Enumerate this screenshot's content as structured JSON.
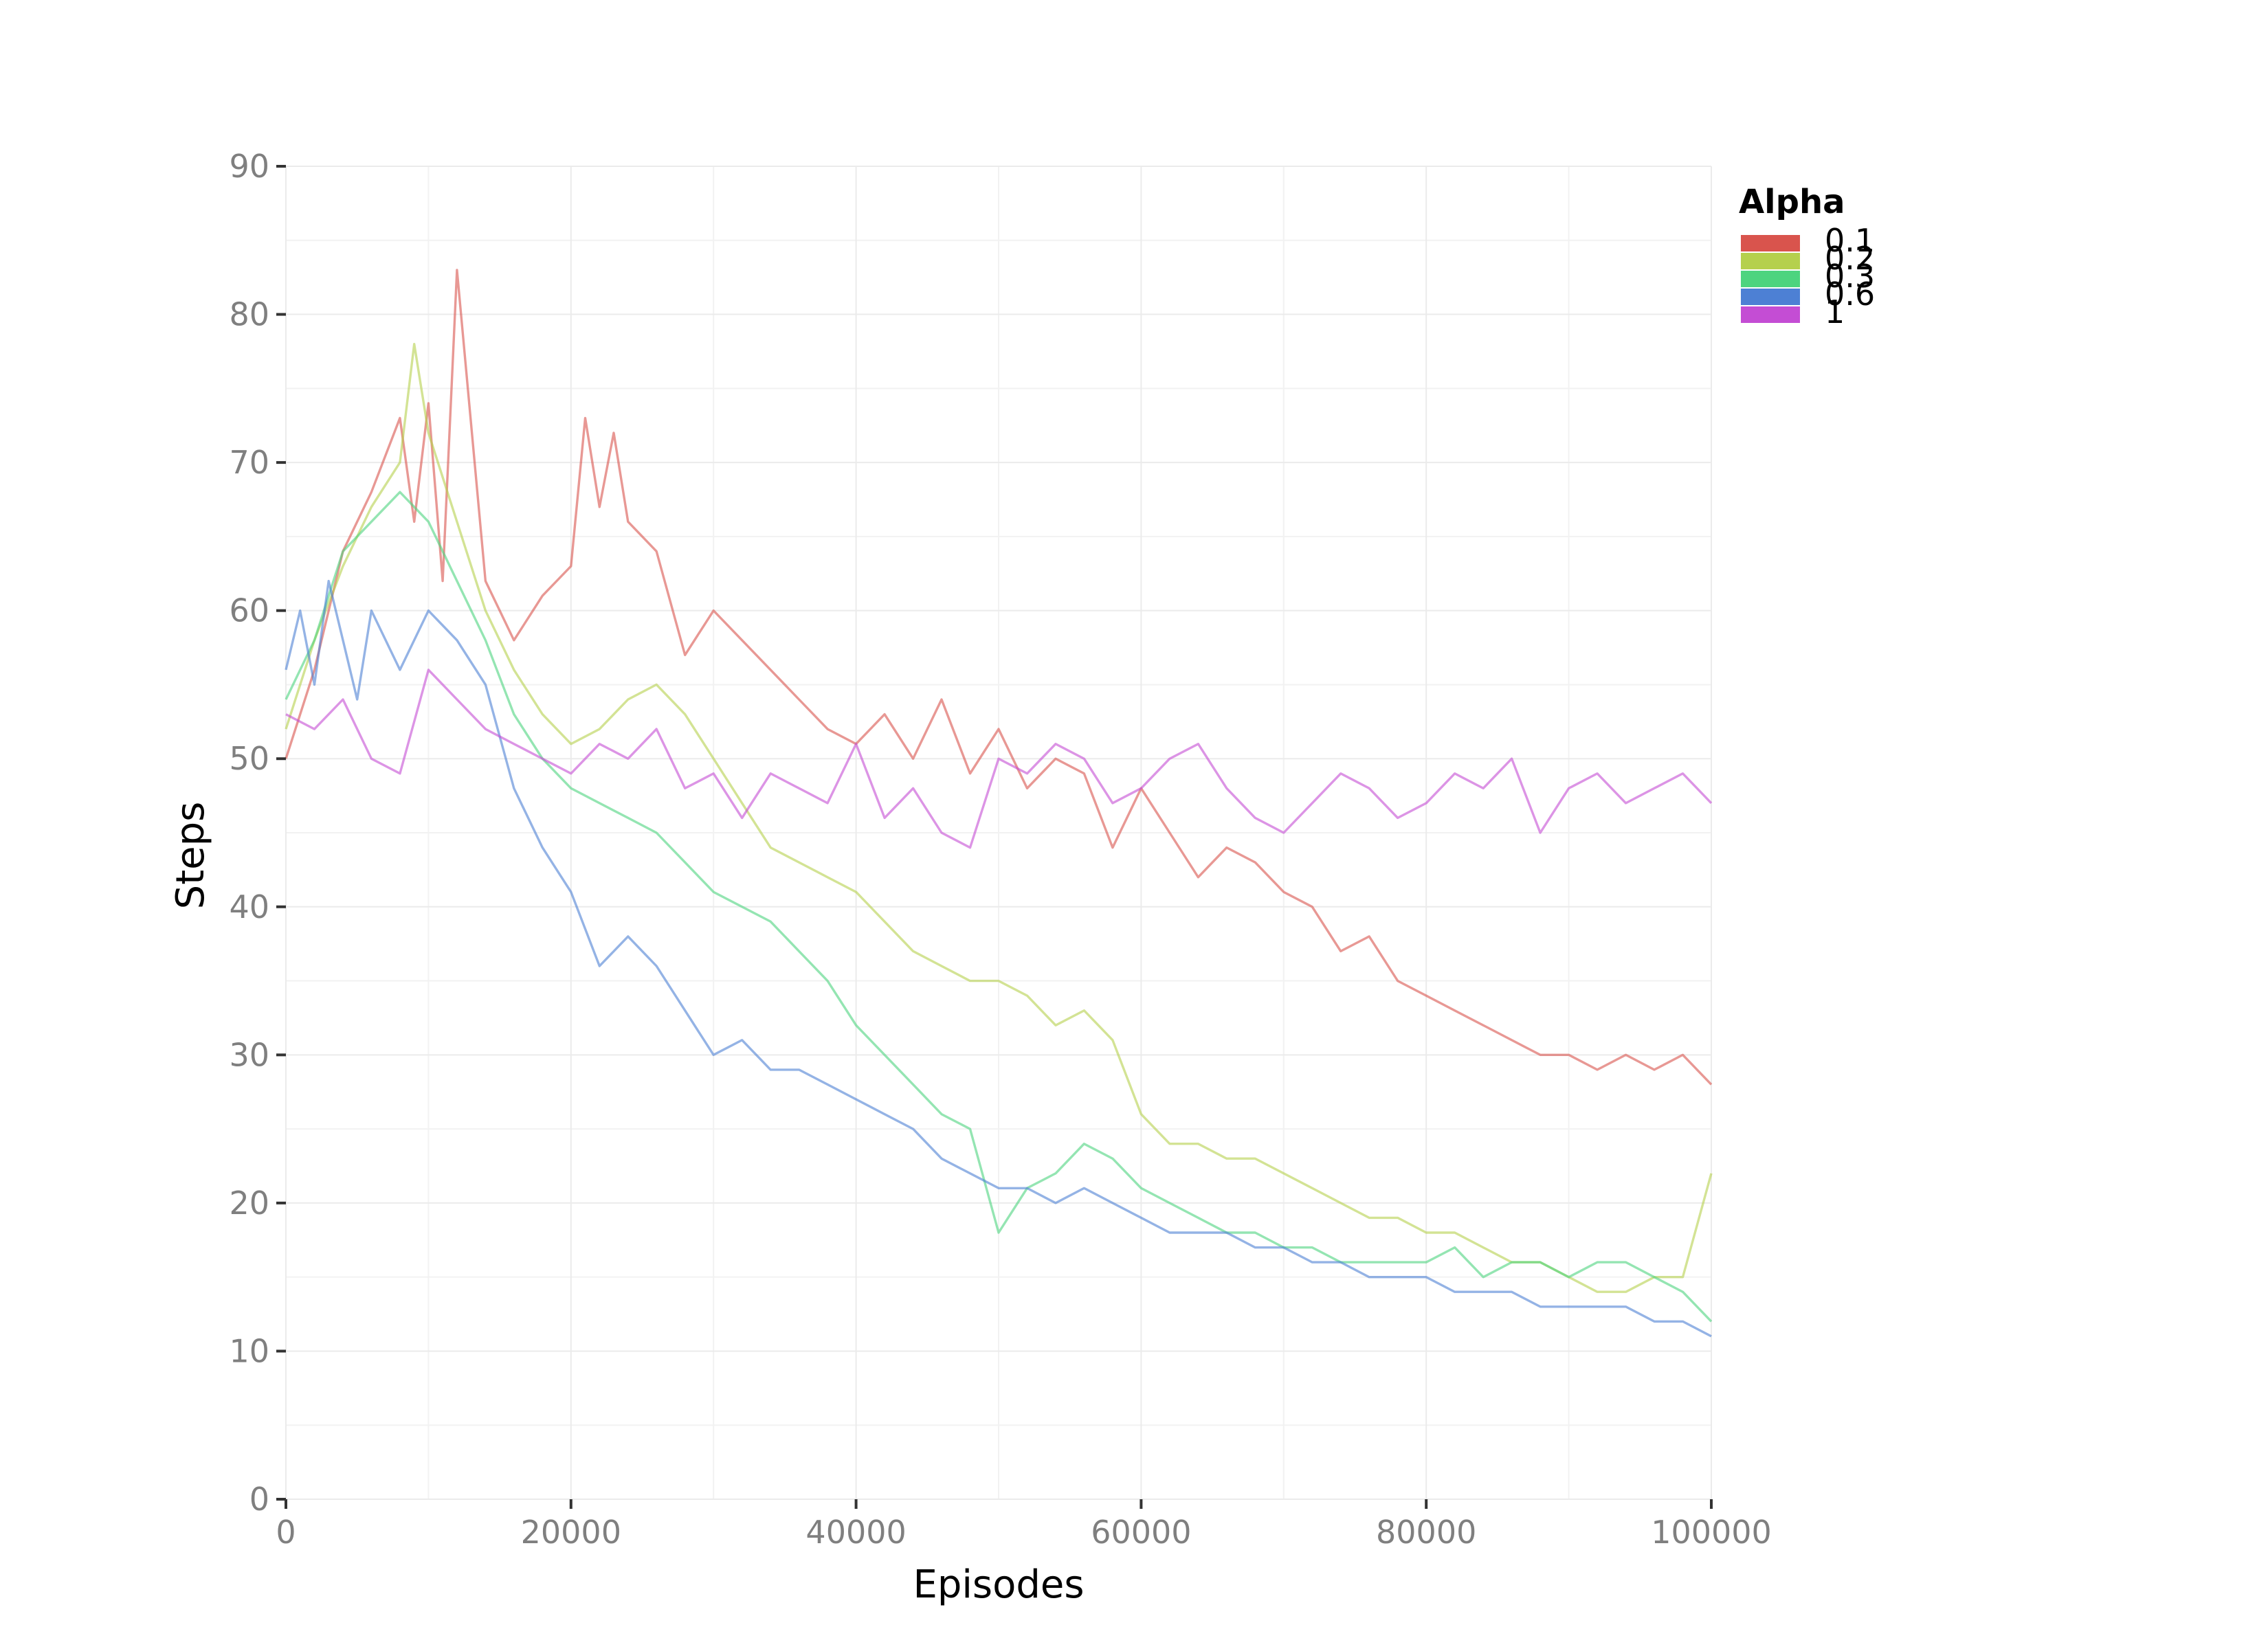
{
  "chart_data": {
    "type": "line",
    "title": "",
    "xlabel": "Episodes",
    "ylabel": "Steps",
    "xlim": [
      0,
      100000
    ],
    "ylim": [
      0,
      90
    ],
    "x_ticks": [
      0,
      20000,
      40000,
      60000,
      80000,
      100000
    ],
    "x_tick_labels": [
      "0",
      "20000",
      "40000",
      "60000",
      "80000",
      "100000"
    ],
    "y_ticks": [
      0,
      10,
      20,
      30,
      40,
      50,
      60,
      70,
      80,
      90
    ],
    "y_tick_labels": [
      "0",
      "10",
      "20",
      "30",
      "40",
      "50",
      "60",
      "70",
      "80",
      "90"
    ],
    "grid": true,
    "legend": {
      "title": "Alpha",
      "position": "top-right"
    },
    "series": [
      {
        "name": "0.1",
        "color": "#d9544d",
        "x": [
          0,
          2000,
          4000,
          6000,
          8000,
          9000,
          10000,
          11000,
          12000,
          14000,
          16000,
          18000,
          20000,
          21000,
          22000,
          23000,
          24000,
          26000,
          28000,
          30000,
          32000,
          34000,
          36000,
          38000,
          40000,
          42000,
          44000,
          46000,
          48000,
          50000,
          52000,
          54000,
          56000,
          58000,
          60000,
          62000,
          64000,
          66000,
          68000,
          70000,
          72000,
          74000,
          76000,
          78000,
          80000,
          82000,
          84000,
          86000,
          88000,
          90000,
          92000,
          94000,
          96000,
          98000,
          100000
        ],
        "y": [
          50,
          56,
          64,
          68,
          73,
          66,
          74,
          62,
          83,
          62,
          58,
          61,
          63,
          73,
          67,
          72,
          66,
          64,
          57,
          60,
          58,
          56,
          54,
          52,
          51,
          53,
          50,
          54,
          49,
          52,
          48,
          50,
          49,
          44,
          48,
          45,
          42,
          44,
          43,
          41,
          40,
          37,
          38,
          35,
          34,
          33,
          32,
          31,
          30,
          30,
          29,
          30,
          29,
          30,
          28
        ]
      },
      {
        "name": "0.2",
        "color": "#b5d04d",
        "x": [
          0,
          2000,
          4000,
          6000,
          8000,
          9000,
          10000,
          12000,
          14000,
          16000,
          18000,
          20000,
          22000,
          24000,
          26000,
          28000,
          30000,
          32000,
          34000,
          36000,
          38000,
          40000,
          42000,
          44000,
          46000,
          48000,
          50000,
          52000,
          54000,
          56000,
          58000,
          60000,
          62000,
          64000,
          66000,
          68000,
          70000,
          72000,
          74000,
          76000,
          78000,
          80000,
          82000,
          84000,
          86000,
          88000,
          90000,
          92000,
          94000,
          96000,
          98000,
          100000
        ],
        "y": [
          52,
          58,
          63,
          67,
          70,
          78,
          72,
          66,
          60,
          56,
          53,
          51,
          52,
          54,
          55,
          53,
          50,
          47,
          44,
          43,
          42,
          41,
          39,
          37,
          36,
          35,
          35,
          34,
          32,
          33,
          31,
          26,
          24,
          24,
          23,
          23,
          22,
          21,
          20,
          19,
          19,
          18,
          18,
          17,
          16,
          16,
          15,
          14,
          14,
          15,
          15,
          22
        ]
      },
      {
        "name": "0.3",
        "color": "#4dd47f",
        "x": [
          0,
          2000,
          4000,
          6000,
          8000,
          10000,
          12000,
          14000,
          16000,
          18000,
          20000,
          22000,
          24000,
          26000,
          28000,
          30000,
          32000,
          34000,
          36000,
          38000,
          40000,
          42000,
          44000,
          46000,
          48000,
          50000,
          52000,
          54000,
          56000,
          58000,
          60000,
          62000,
          64000,
          66000,
          68000,
          70000,
          72000,
          74000,
          76000,
          78000,
          80000,
          82000,
          84000,
          86000,
          88000,
          90000,
          92000,
          94000,
          96000,
          98000,
          100000
        ],
        "y": [
          54,
          58,
          64,
          66,
          68,
          66,
          62,
          58,
          53,
          50,
          48,
          47,
          46,
          45,
          43,
          41,
          40,
          39,
          37,
          35,
          32,
          30,
          28,
          26,
          25,
          18,
          21,
          22,
          24,
          23,
          21,
          20,
          19,
          18,
          18,
          17,
          17,
          16,
          16,
          16,
          16,
          17,
          15,
          16,
          16,
          15,
          16,
          16,
          15,
          14,
          12
        ]
      },
      {
        "name": "0.6",
        "color": "#4d80d4",
        "x": [
          0,
          1000,
          2000,
          3000,
          4000,
          5000,
          6000,
          8000,
          10000,
          12000,
          14000,
          16000,
          18000,
          20000,
          22000,
          24000,
          26000,
          28000,
          30000,
          32000,
          34000,
          36000,
          38000,
          40000,
          42000,
          44000,
          46000,
          48000,
          50000,
          52000,
          54000,
          56000,
          58000,
          60000,
          62000,
          64000,
          66000,
          68000,
          70000,
          72000,
          74000,
          76000,
          78000,
          80000,
          82000,
          84000,
          86000,
          88000,
          90000,
          92000,
          94000,
          96000,
          98000,
          100000
        ],
        "y": [
          56,
          60,
          55,
          62,
          58,
          54,
          60,
          56,
          60,
          58,
          55,
          48,
          44,
          41,
          36,
          38,
          36,
          33,
          30,
          31,
          29,
          29,
          28,
          27,
          26,
          25,
          23,
          22,
          21,
          21,
          20,
          21,
          20,
          19,
          18,
          18,
          18,
          17,
          17,
          16,
          16,
          15,
          15,
          15,
          14,
          14,
          14,
          13,
          13,
          13,
          13,
          12,
          12,
          11
        ]
      },
      {
        "name": "1",
        "color": "#c44dd4",
        "x": [
          0,
          2000,
          4000,
          6000,
          8000,
          10000,
          12000,
          14000,
          16000,
          18000,
          20000,
          22000,
          24000,
          26000,
          28000,
          30000,
          32000,
          34000,
          36000,
          38000,
          40000,
          42000,
          44000,
          46000,
          48000,
          50000,
          52000,
          54000,
          56000,
          58000,
          60000,
          62000,
          64000,
          66000,
          68000,
          70000,
          72000,
          74000,
          76000,
          78000,
          80000,
          82000,
          84000,
          86000,
          88000,
          90000,
          92000,
          94000,
          96000,
          98000,
          100000
        ],
        "y": [
          53,
          52,
          54,
          50,
          49,
          56,
          54,
          52,
          51,
          50,
          49,
          51,
          50,
          52,
          48,
          49,
          46,
          49,
          48,
          47,
          51,
          46,
          48,
          45,
          44,
          50,
          49,
          51,
          50,
          47,
          48,
          50,
          51,
          48,
          46,
          45,
          47,
          49,
          48,
          46,
          47,
          49,
          48,
          50,
          45,
          48,
          49,
          47,
          48,
          49,
          47
        ]
      }
    ]
  }
}
